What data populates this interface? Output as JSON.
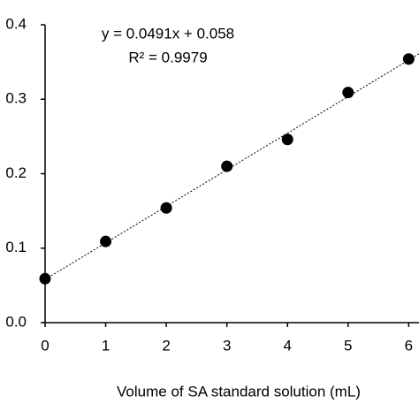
{
  "chart_data": {
    "type": "scatter",
    "x_label": "Volume of SA standard solution (mL)",
    "annotations": [
      "y = 0.0491x + 0.058",
      "R² = 0.9979"
    ],
    "x": [
      0,
      1,
      2,
      3,
      4,
      5,
      6
    ],
    "series": [
      {
        "color": "#000000",
        "values": [
          0.059,
          0.109,
          0.154,
          0.21,
          0.246,
          0.309,
          0.354
        ]
      }
    ],
    "trendline": {
      "slope": 0.0491,
      "intercept": 0.058,
      "color": "#000000"
    },
    "xlim": [
      0,
      6.17
    ],
    "xticks": [
      0,
      1,
      2,
      3,
      4,
      5,
      6
    ],
    "ylim": [
      0,
      0.4
    ],
    "yticks": [
      {
        "value": 0,
        "label": "0.0"
      },
      {
        "value": 0.1,
        "label": "0.1"
      },
      {
        "value": 0.2,
        "label": "0.2"
      },
      {
        "value": 0.3,
        "label": "0.3"
      },
      {
        "value": 0.4,
        "label": "0.4"
      }
    ],
    "grid": false
  }
}
